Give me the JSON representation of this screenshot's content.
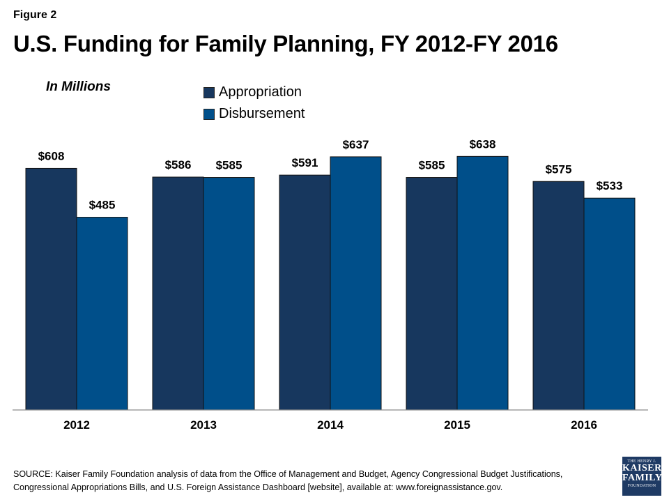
{
  "figure_label": "Figure 2",
  "chart_data": {
    "type": "bar",
    "title": "U.S. Funding for Family Planning, FY 2012-FY 2016",
    "unit_label": "In Millions",
    "categories": [
      "2012",
      "2013",
      "2014",
      "2015",
      "2016"
    ],
    "series": [
      {
        "name": "Appropriation",
        "values": [
          608,
          586,
          591,
          585,
          575
        ],
        "labels": [
          "$608",
          "$586",
          "$591",
          "$585",
          "$575"
        ],
        "color": "#17375e"
      },
      {
        "name": "Disbursement",
        "values": [
          485,
          585,
          637,
          638,
          533
        ],
        "labels": [
          "$485",
          "$585",
          "$637",
          "$638",
          "$533"
        ],
        "color": "#004f8a"
      }
    ],
    "ylim": [
      0,
      700
    ],
    "grid": false,
    "legend_position": "top-center"
  },
  "source": {
    "line1": "SOURCE: Kaiser Family Foundation analysis of data from the Office of Management and Budget, Agency Congressional Budget Justifications,",
    "line2": "Congressional Appropriations Bills, and U.S. Foreign Assistance Dashboard [website], available at: www.foreignassistance.gov."
  },
  "logo": {
    "line1": "THE HENRY J.",
    "line2": "KAISER",
    "line3": "FAMILY",
    "line4": "FOUNDATION"
  }
}
